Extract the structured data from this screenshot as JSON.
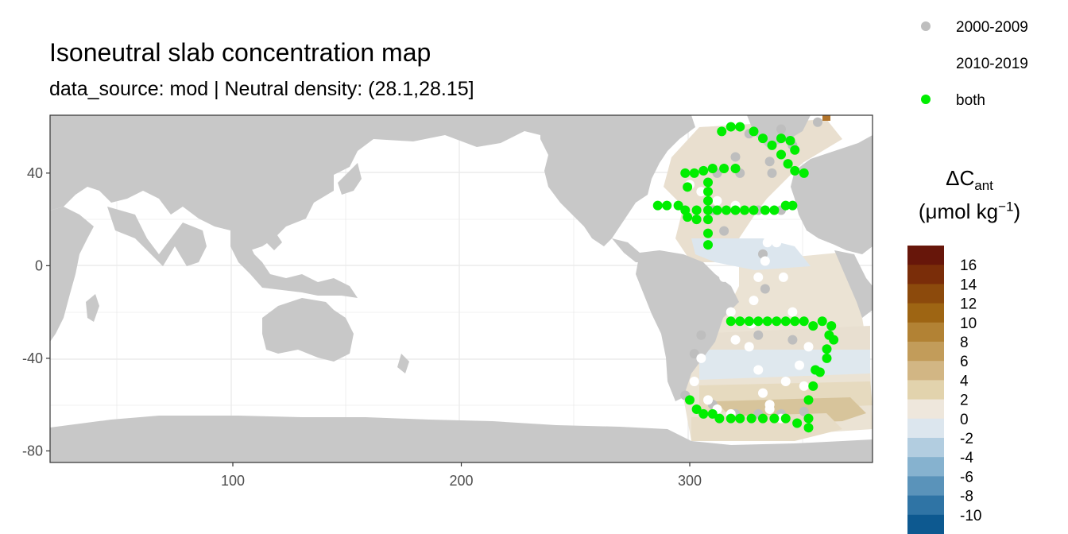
{
  "title": "Isoneutral slab concentration map",
  "subtitle": "data_source: mod | Neutral density: (28.1,28.15]",
  "legend": {
    "items": [
      {
        "label": "2000-2009",
        "color": "#bebebe"
      },
      {
        "label": "2010-2019",
        "color": "#ffffff"
      },
      {
        "label": "both",
        "color": "#00ee00"
      }
    ]
  },
  "colorbar": {
    "title_main": "ΔC",
    "title_sub": "ant",
    "units_prefix": "(μmol kg",
    "units_sup": "−1",
    "units_suffix": ")",
    "labels": [
      "16",
      "14",
      "12",
      "10",
      "8",
      "6",
      "4",
      "2",
      "0",
      "-2",
      "-4",
      "-6",
      "-8",
      "-10"
    ],
    "colors": [
      "#67160a",
      "#7a2d09",
      "#8c4a0c",
      "#9e6513",
      "#b28234",
      "#c29c5a",
      "#d2b684",
      "#e2d3ad",
      "#eee7dc",
      "#dce6ee",
      "#b2cde0",
      "#86b2cf",
      "#5a93ba",
      "#2f74a5",
      "#0d5990"
    ]
  },
  "chart_data": {
    "type": "scatter",
    "title": "Isoneutral slab concentration map",
    "subtitle": "data_source: mod | Neutral density: (28.1,28.15]",
    "xlim": [
      20,
      380
    ],
    "ylim": [
      -85,
      65
    ],
    "x_ticks": [
      100,
      200,
      300
    ],
    "y_ticks": [
      40,
      0,
      -40,
      -80
    ],
    "grid": true,
    "legend_position": "top-right",
    "series": [
      {
        "name": "2000-2009",
        "color": "#bebebe",
        "points": [
          [
            310,
            -60
          ],
          [
            320,
            -64
          ],
          [
            330,
            -64
          ],
          [
            340,
            -64
          ],
          [
            350,
            -63
          ],
          [
            298,
            -56
          ],
          [
            305,
            -30
          ],
          [
            330,
            -30
          ],
          [
            345,
            -32
          ],
          [
            310,
            24
          ],
          [
            320,
            24
          ],
          [
            330,
            24
          ],
          [
            340,
            24
          ],
          [
            312,
            40
          ],
          [
            322,
            40
          ],
          [
            336,
            40
          ],
          [
            326,
            57
          ],
          [
            340,
            59
          ],
          [
            356,
            62
          ],
          [
            345,
            52
          ],
          [
            302,
            -38
          ],
          [
            315,
            15
          ],
          [
            332,
            5
          ],
          [
            333,
            -10
          ],
          [
            335,
            45
          ],
          [
            320,
            47
          ]
        ]
      },
      {
        "name": "2010-2019",
        "color": "#ffffff",
        "points": [
          [
            300,
            35
          ],
          [
            305,
            32
          ],
          [
            312,
            28
          ],
          [
            320,
            26
          ],
          [
            328,
            24
          ],
          [
            333,
            18
          ],
          [
            334,
            10
          ],
          [
            333,
            2
          ],
          [
            330,
            -5
          ],
          [
            328,
            -15
          ],
          [
            327,
            -25
          ],
          [
            326,
            -35
          ],
          [
            330,
            -45
          ],
          [
            332,
            -55
          ],
          [
            335,
            -62
          ],
          [
            340,
            -66
          ],
          [
            305,
            -40
          ],
          [
            302,
            -50
          ],
          [
            308,
            -58
          ],
          [
            312,
            -62
          ],
          [
            318,
            -64
          ],
          [
            342,
            -50
          ],
          [
            348,
            -43
          ],
          [
            352,
            -35
          ],
          [
            345,
            -20
          ],
          [
            341,
            -5
          ],
          [
            338,
            10
          ],
          [
            336,
            24
          ],
          [
            315,
            -5
          ],
          [
            318,
            -20
          ],
          [
            320,
            -32
          ],
          [
            335,
            -60
          ],
          [
            350,
            -52
          ]
        ]
      },
      {
        "name": "both",
        "color": "#00ee00",
        "points": [
          [
            286,
            26
          ],
          [
            290,
            26
          ],
          [
            295,
            26
          ],
          [
            298,
            24
          ],
          [
            303,
            24
          ],
          [
            308,
            24
          ],
          [
            312,
            24
          ],
          [
            316,
            24
          ],
          [
            320,
            24
          ],
          [
            324,
            24
          ],
          [
            328,
            24
          ],
          [
            333,
            24
          ],
          [
            337,
            24
          ],
          [
            342,
            26
          ],
          [
            345,
            26
          ],
          [
            298,
            40
          ],
          [
            302,
            40
          ],
          [
            306,
            41
          ],
          [
            310,
            42
          ],
          [
            315,
            42
          ],
          [
            320,
            42
          ],
          [
            308,
            36
          ],
          [
            308,
            32
          ],
          [
            308,
            28
          ],
          [
            308,
            20
          ],
          [
            308,
            14
          ],
          [
            308,
            9
          ],
          [
            303,
            20
          ],
          [
            299,
            21
          ],
          [
            299,
            34
          ],
          [
            314,
            58
          ],
          [
            318,
            60
          ],
          [
            322,
            60
          ],
          [
            328,
            58
          ],
          [
            332,
            55
          ],
          [
            336,
            52
          ],
          [
            340,
            48
          ],
          [
            343,
            44
          ],
          [
            346,
            41
          ],
          [
            350,
            40
          ],
          [
            340,
            55
          ],
          [
            344,
            54
          ],
          [
            346,
            50
          ],
          [
            318,
            -24
          ],
          [
            322,
            -24
          ],
          [
            326,
            -24
          ],
          [
            330,
            -24
          ],
          [
            334,
            -24
          ],
          [
            338,
            -24
          ],
          [
            342,
            -24
          ],
          [
            346,
            -24
          ],
          [
            350,
            -24
          ],
          [
            354,
            -26
          ],
          [
            358,
            -24
          ],
          [
            362,
            -26
          ],
          [
            363,
            -32
          ],
          [
            360,
            -40
          ],
          [
            357,
            -46
          ],
          [
            354,
            -52
          ],
          [
            352,
            -58
          ],
          [
            352,
            -66
          ],
          [
            352,
            -70
          ],
          [
            355,
            -45
          ],
          [
            360,
            -36
          ],
          [
            361,
            -30
          ],
          [
            300,
            -58
          ],
          [
            303,
            -62
          ],
          [
            306,
            -64
          ],
          [
            310,
            -64
          ],
          [
            313,
            -66
          ],
          [
            318,
            -66
          ],
          [
            322,
            -66
          ],
          [
            327,
            -66
          ],
          [
            332,
            -66
          ],
          [
            337,
            -66
          ],
          [
            342,
            -66
          ],
          [
            347,
            -68
          ]
        ]
      }
    ]
  }
}
